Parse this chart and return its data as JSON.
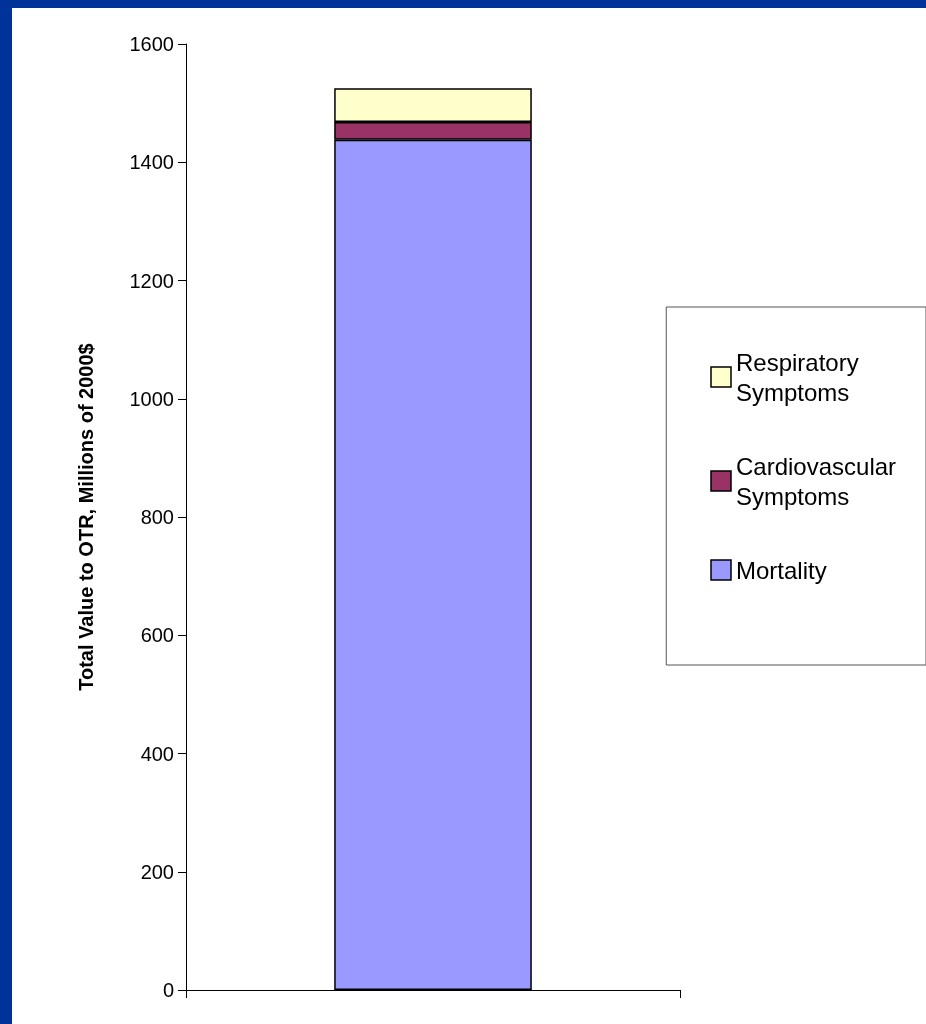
{
  "chart_data": {
    "type": "bar",
    "stacked": true,
    "ylabel": "Total Value to OTR, Millions of 2000$",
    "categories": [
      null
    ],
    "series": [
      {
        "name": "Mortality",
        "color": "#9999ff",
        "values": [
          1438
        ]
      },
      {
        "name": "Cardiovascular Symptoms",
        "color": "#993366",
        "values": [
          30
        ]
      },
      {
        "name": "Respiratory Symptoms",
        "color": "#ffffcc",
        "values": [
          57
        ]
      }
    ],
    "ylim": [
      0,
      1600
    ],
    "yticks": [
      0,
      200,
      400,
      600,
      800,
      1000,
      1200,
      1400,
      1600
    ],
    "grid": false,
    "legend": "right"
  }
}
